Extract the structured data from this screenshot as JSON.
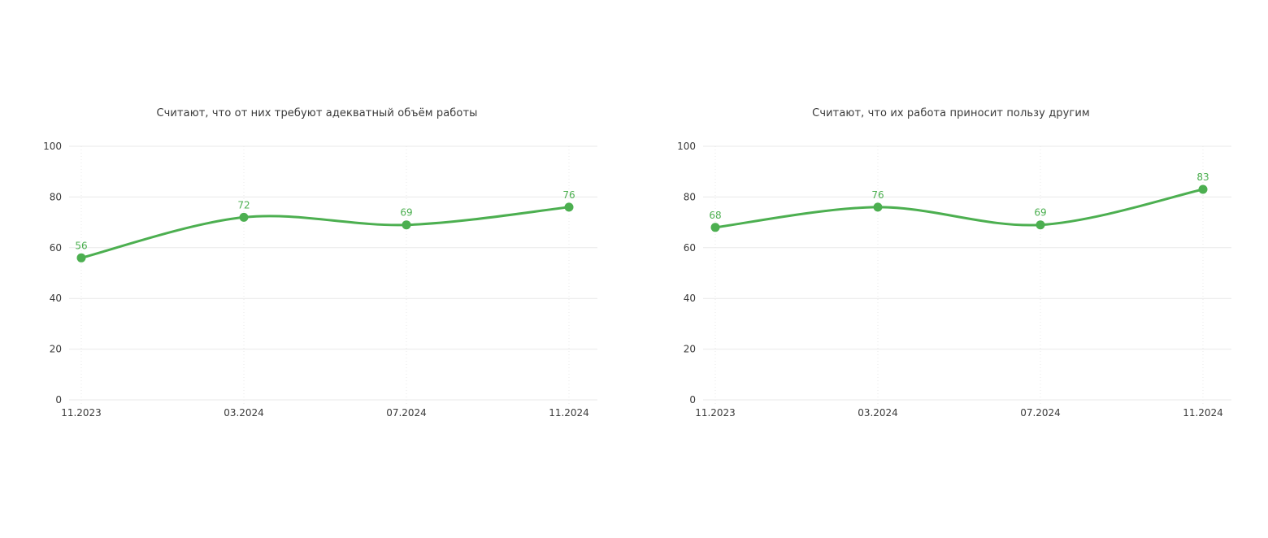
{
  "layout": {
    "background": "#ffffff",
    "charts_side_by_side": 2
  },
  "colors": {
    "line": "#4caf50",
    "marker": "#4caf50",
    "point_label": "#4caf50",
    "grid": "#e9e9e9",
    "tick_label": "#3a3a3a",
    "title": "#3a3a3a"
  },
  "chart_data": [
    {
      "type": "line",
      "title": "Считают, что от них требуют адекватный объём работы",
      "categories": [
        "11.2023",
        "03.2024",
        "07.2024",
        "11.2024"
      ],
      "values": [
        56,
        72,
        69,
        76
      ],
      "ylim": [
        0,
        100
      ],
      "yticks": [
        0,
        20,
        40,
        60,
        80,
        100
      ],
      "grid": {
        "horizontal": "solid",
        "vertical": "dotted"
      },
      "legend": "none",
      "line_style": "smooth",
      "line_color": "#4caf50"
    },
    {
      "type": "line",
      "title": "Считают, что их работа приносит пользу другим",
      "categories": [
        "11.2023",
        "03.2024",
        "07.2024",
        "11.2024"
      ],
      "values": [
        68,
        76,
        69,
        83
      ],
      "ylim": [
        0,
        100
      ],
      "yticks": [
        0,
        20,
        40,
        60,
        80,
        100
      ],
      "grid": {
        "horizontal": "solid",
        "vertical": "dotted"
      },
      "legend": "none",
      "line_style": "smooth",
      "line_color": "#4caf50"
    }
  ]
}
